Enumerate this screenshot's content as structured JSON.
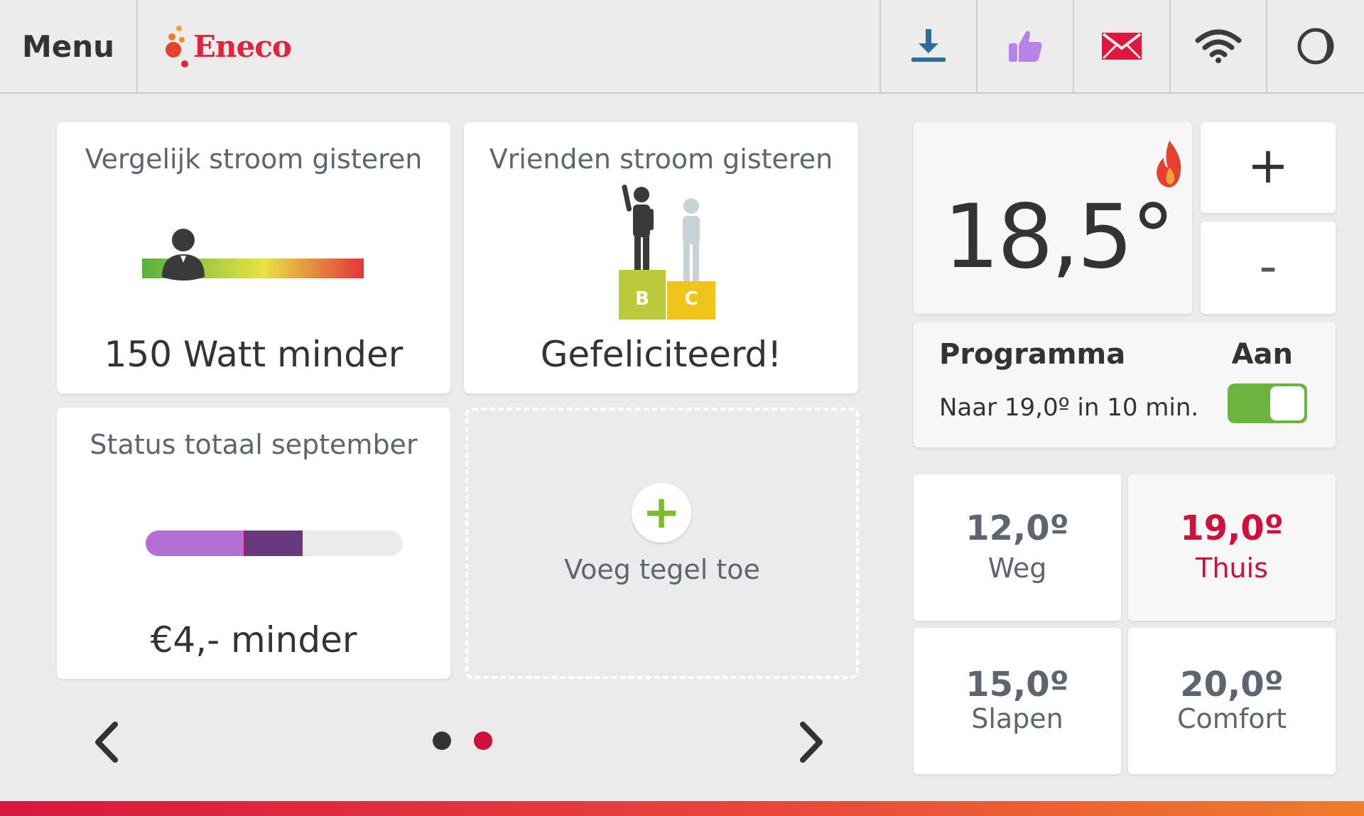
{
  "header": {
    "menu_label": "Menu",
    "brand": "Eneco",
    "icons": [
      "download-icon",
      "thumbs-up-icon",
      "mail-icon",
      "wifi-icon",
      "display-mode-icon"
    ]
  },
  "tiles": {
    "compare": {
      "title": "Vergelijk stroom gisteren",
      "value": "150 Watt minder"
    },
    "friends": {
      "title": "Vrienden stroom gisteren",
      "value": "Gefeliciteerd!",
      "podium_left": "B",
      "podium_right": "C"
    },
    "status": {
      "title": "Status totaal september",
      "value": "€4,- minder",
      "progress_light": 0.38,
      "progress_dark": 0.23
    },
    "add": {
      "label": "Voeg tegel toe"
    }
  },
  "pager": {
    "total": 2,
    "active": 2
  },
  "thermostat": {
    "temperature": "18,5°",
    "plus": "+",
    "minus": "-",
    "program_label": "Programma",
    "program_state": "Aan",
    "program_info": "Naar 19,0º in 10 min.",
    "toggle_on": true
  },
  "presets": [
    {
      "value": "12,0º",
      "label": "Weg",
      "active": false
    },
    {
      "value": "19,0º",
      "label": "Thuis",
      "active": true
    },
    {
      "value": "15,0º",
      "label": "Slapen",
      "active": false
    },
    {
      "value": "20,0º",
      "label": "Comfort",
      "active": false
    }
  ],
  "colors": {
    "accent": "#d0103a",
    "toggle": "#6db33f",
    "purple_light": "#b36fd6",
    "purple_dark": "#673a80"
  }
}
